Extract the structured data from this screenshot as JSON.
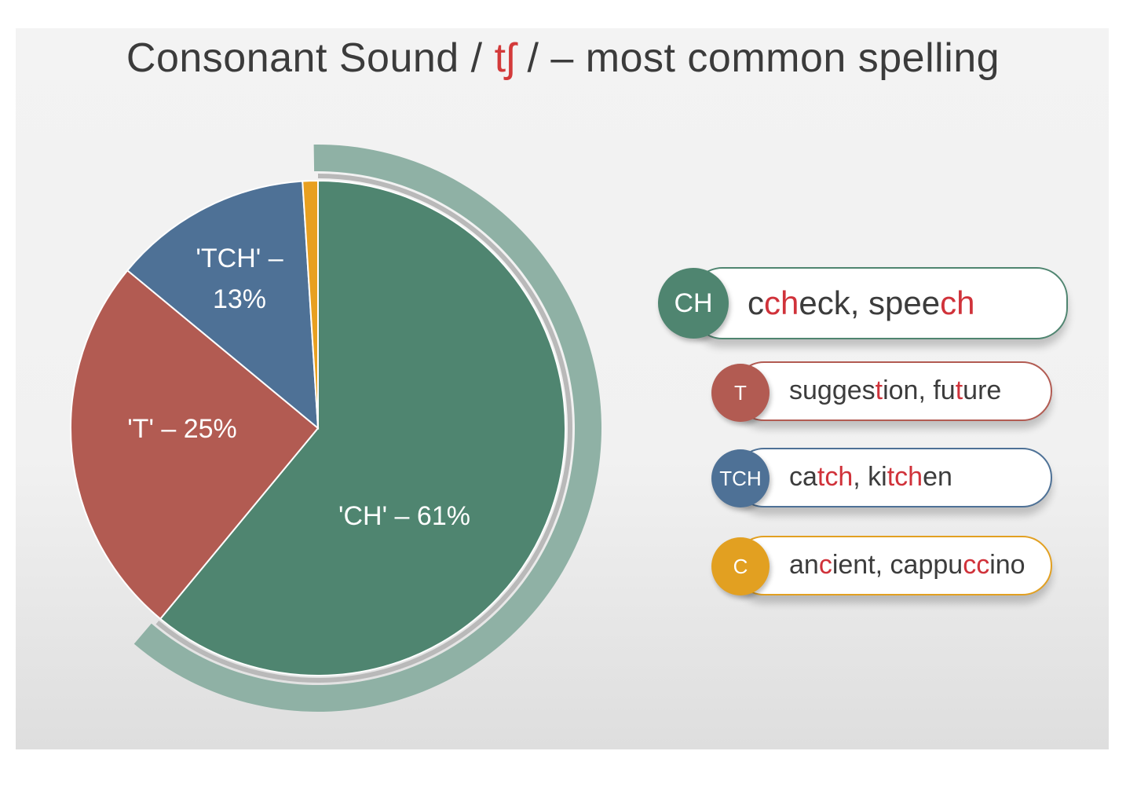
{
  "title": {
    "before": "Consonant Sound / ",
    "ipa": "tʃ",
    "after": " / – most common spelling"
  },
  "chart_data": {
    "type": "pie",
    "title": "Consonant Sound / tʃ / – most common spelling",
    "slices": [
      {
        "label": "'CH' – 61%",
        "value": 61,
        "color": "#4f8570"
      },
      {
        "label": "'T' – 25%",
        "value": 25,
        "color": "#b25b52"
      },
      {
        "label": "'TCH' –\n13%",
        "value": 13,
        "color": "#4e7196"
      },
      {
        "label": "",
        "value": 1,
        "color": "#e8a020"
      }
    ],
    "highlight_color": "#8fb1a5"
  },
  "legend": [
    {
      "badge": "CH",
      "color": "#4f8570",
      "words": [
        {
          "text": "c",
          "hl": false
        },
        {
          "text": "ch",
          "hl": true
        },
        {
          "text": "eck, spee",
          "hl": false
        },
        {
          "text": "ch",
          "hl": true
        }
      ]
    },
    {
      "badge": "T",
      "color": "#b25b52",
      "words": [
        {
          "text": "sugges",
          "hl": false
        },
        {
          "text": "t",
          "hl": true
        },
        {
          "text": "ion, fu",
          "hl": false
        },
        {
          "text": "t",
          "hl": true
        },
        {
          "text": "ure",
          "hl": false
        }
      ]
    },
    {
      "badge": "TCH",
      "color": "#4e7196",
      "words": [
        {
          "text": "ca",
          "hl": false
        },
        {
          "text": "tch",
          "hl": true
        },
        {
          "text": ", ki",
          "hl": false
        },
        {
          "text": "tch",
          "hl": true
        },
        {
          "text": "en",
          "hl": false
        }
      ]
    },
    {
      "badge": "C",
      "color": "#e2a021",
      "words": [
        {
          "text": "an",
          "hl": false
        },
        {
          "text": "c",
          "hl": true
        },
        {
          "text": "ient, cappu",
          "hl": false
        },
        {
          "text": "cc",
          "hl": true
        },
        {
          "text": "ino",
          "hl": false
        }
      ]
    }
  ]
}
